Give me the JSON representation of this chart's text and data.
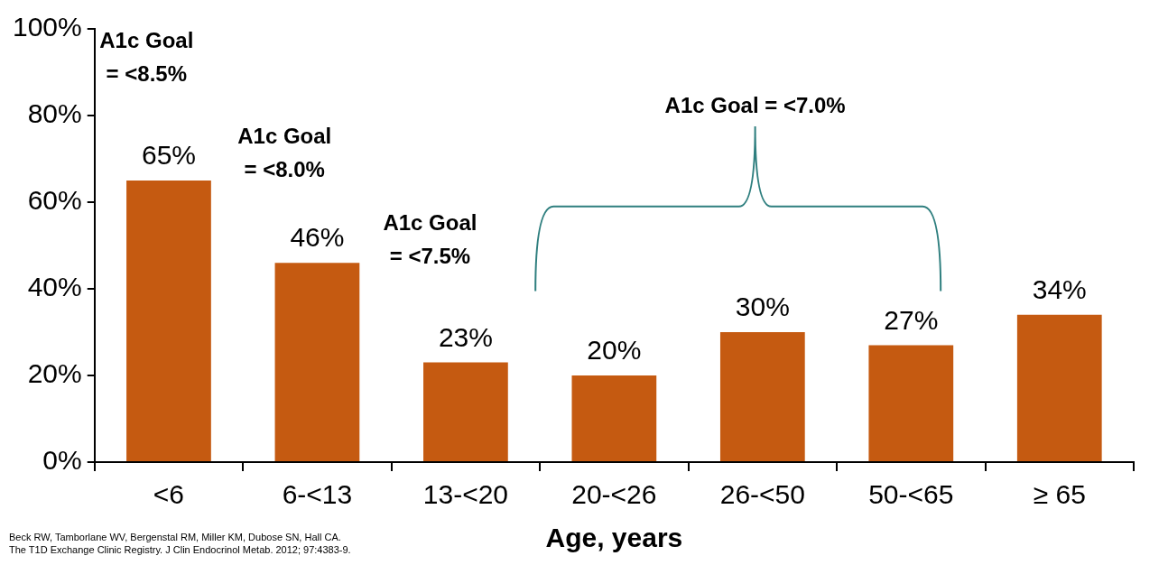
{
  "chart_data": {
    "type": "bar",
    "xlabel": "Age, years",
    "categories": [
      "<6",
      "6-<13",
      "13-<20",
      "20-<26",
      "26-<50",
      "50-<65",
      "≥ 65"
    ],
    "values": [
      65,
      46,
      23,
      20,
      30,
      27,
      34
    ],
    "value_labels": [
      "65%",
      "46%",
      "23%",
      "20%",
      "30%",
      "27%",
      "34%"
    ],
    "color": "#c55a11",
    "ylim": [
      0,
      100
    ],
    "yticks": [
      {
        "value": 0,
        "label": "0%"
      },
      {
        "value": 20,
        "label": "20%"
      },
      {
        "value": 40,
        "label": "40%"
      },
      {
        "value": 60,
        "label": "60%"
      },
      {
        "value": 80,
        "label": "80%"
      },
      {
        "value": 100,
        "label": "100%"
      }
    ],
    "grid": false,
    "legend": false,
    "annotations": [
      "A1c Goal\n= <8.5%",
      "A1c Goal\n= <8.0%",
      "A1c Goal\n= <7.5%",
      "A1c Goal = <7.0%",
      "Beck RW, Tamborlane WV, Bergenstal RM, Miller KM, Dubose SN, Hall CA.\nThe T1D Exchange Clinic Registry. J Clin Endocrinol Metab. 2012; 97:4383-9."
    ]
  }
}
